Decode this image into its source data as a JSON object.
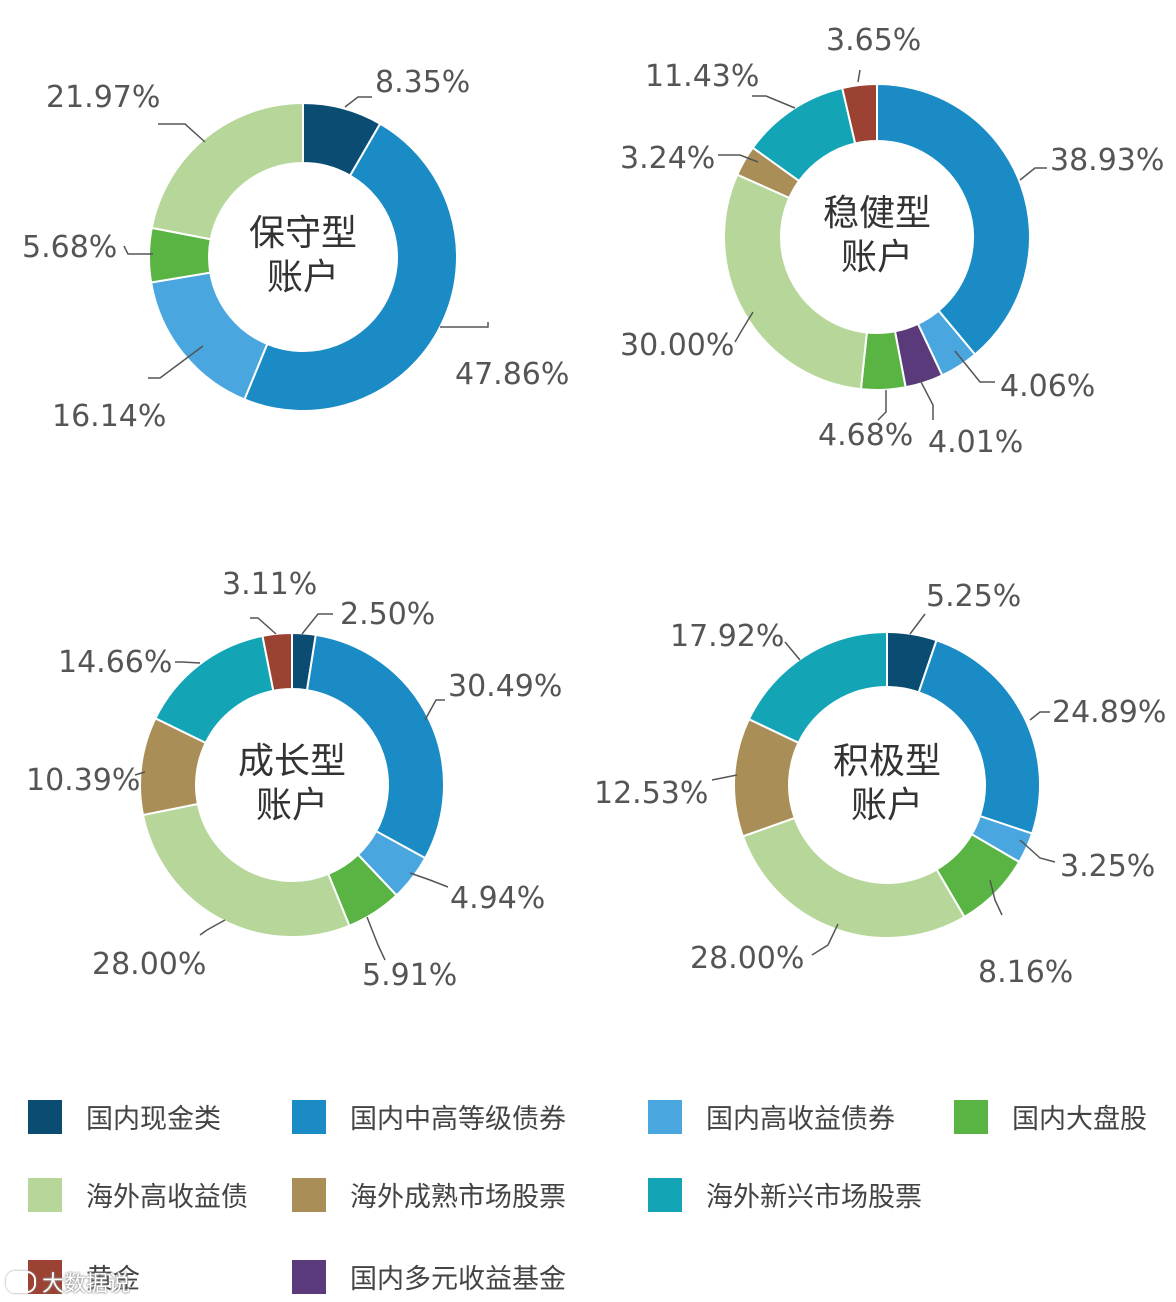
{
  "categories": [
    "国内现金类",
    "国内中高等级债券",
    "国内高收益债券",
    "国内大盘股",
    "海外高收益债",
    "海外成熟市场股票",
    "海外新兴市场股票",
    "黄金",
    "国内多元收益基金"
  ],
  "colors": [
    "#0a4c72",
    "#1a8bc4",
    "#4aa6df",
    "#5ab443",
    "#b6d799",
    "#a98f57",
    "#13a5b5",
    "#9b4233",
    "#5a3a7a"
  ],
  "legend": {
    "items": [
      {
        "label": "国内现金类",
        "color": "#0a4c72"
      },
      {
        "label": "国内中高等级债券",
        "color": "#1a8bc4"
      },
      {
        "label": "国内高收益债券",
        "color": "#4aa6df"
      },
      {
        "label": "国内大盘股",
        "color": "#5ab443"
      },
      {
        "label": "海外高收益债",
        "color": "#b6d799"
      },
      {
        "label": "海外成熟市场股票",
        "color": "#a98f57"
      },
      {
        "label": "海外新兴市场股票",
        "color": "#13a5b5"
      },
      {
        "label": "黄金",
        "color": "#9b4233"
      },
      {
        "label": "国内多元收益基金",
        "color": "#5a3a7a"
      }
    ]
  },
  "watermark": "大数据说",
  "chart_data": [
    {
      "type": "pie",
      "center_text": [
        "保守型",
        "账户"
      ],
      "slices": [
        {
          "category": "国内现金类",
          "value": 8.35,
          "label": "8.35%"
        },
        {
          "category": "国内中高等级债券",
          "value": 47.86,
          "label": "47.86%"
        },
        {
          "category": "国内高收益债券",
          "value": 16.14,
          "label": "16.14%"
        },
        {
          "category": "国内大盘股",
          "value": 5.68,
          "label": "5.68%"
        },
        {
          "category": "海外高收益债",
          "value": 21.97,
          "label": "21.97%"
        }
      ]
    },
    {
      "type": "pie",
      "center_text": [
        "稳健型",
        "账户"
      ],
      "slices": [
        {
          "category": "国内中高等级债券",
          "value": 38.93,
          "label": "38.93%"
        },
        {
          "category": "国内高收益债券",
          "value": 4.06,
          "label": "4.06%"
        },
        {
          "category": "国内多元收益基金",
          "value": 4.01,
          "label": "4.01%"
        },
        {
          "category": "国内大盘股",
          "value": 4.68,
          "label": "4.68%"
        },
        {
          "category": "海外高收益债",
          "value": 30.0,
          "label": "30.00%"
        },
        {
          "category": "海外成熟市场股票",
          "value": 3.24,
          "label": "3.24%"
        },
        {
          "category": "海外新兴市场股票",
          "value": 11.43,
          "label": "11.43%"
        },
        {
          "category": "黄金",
          "value": 3.65,
          "label": "3.65%"
        }
      ]
    },
    {
      "type": "pie",
      "center_text": [
        "成长型",
        "账户"
      ],
      "slices": [
        {
          "category": "国内现金类",
          "value": 2.5,
          "label": "2.50%"
        },
        {
          "category": "国内中高等级债券",
          "value": 30.49,
          "label": "30.49%"
        },
        {
          "category": "国内高收益债券",
          "value": 4.94,
          "label": "4.94%"
        },
        {
          "category": "国内大盘股",
          "value": 5.91,
          "label": "5.91%"
        },
        {
          "category": "海外高收益债",
          "value": 28.0,
          "label": "28.00%"
        },
        {
          "category": "海外成熟市场股票",
          "value": 10.39,
          "label": "10.39%"
        },
        {
          "category": "海外新兴市场股票",
          "value": 14.66,
          "label": "14.66%"
        },
        {
          "category": "黄金",
          "value": 3.11,
          "label": "3.11%"
        }
      ]
    },
    {
      "type": "pie",
      "center_text": [
        "积极型",
        "账户"
      ],
      "slices": [
        {
          "category": "国内现金类",
          "value": 5.25,
          "label": "5.25%"
        },
        {
          "category": "国内中高等级债券",
          "value": 24.89,
          "label": "24.89%"
        },
        {
          "category": "国内高收益债券",
          "value": 3.25,
          "label": "3.25%"
        },
        {
          "category": "国内大盘股",
          "value": 8.16,
          "label": "8.16%"
        },
        {
          "category": "海外高收益债",
          "value": 28.0,
          "label": "28.00%"
        },
        {
          "category": "海外成熟市场股票",
          "value": 12.53,
          "label": "12.53%"
        },
        {
          "category": "海外新兴市场股票",
          "value": 17.92,
          "label": "17.92%"
        }
      ]
    }
  ]
}
